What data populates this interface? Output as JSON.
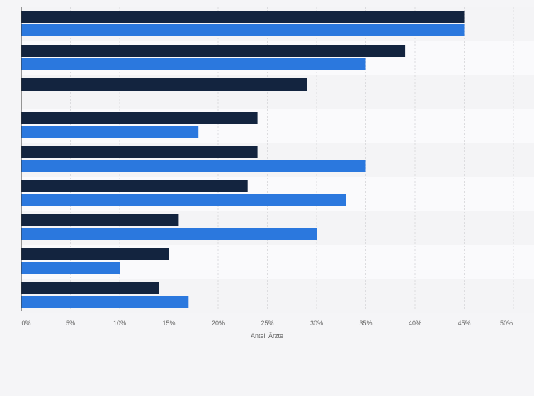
{
  "chart_data": {
    "type": "bar",
    "orientation": "horizontal",
    "categories": [
      "",
      "",
      "",
      "",
      "",
      "",
      "",
      "",
      ""
    ],
    "series": [
      {
        "color": "#13243f",
        "values": [
          45,
          39,
          29,
          24,
          24,
          23,
          16,
          15,
          14
        ]
      },
      {
        "color": "#2b78de",
        "values": [
          45,
          35,
          null,
          18,
          35,
          33,
          30,
          10,
          17
        ]
      }
    ],
    "x_ticks": [
      "0%",
      "5%",
      "10%",
      "15%",
      "20%",
      "25%",
      "30%",
      "35%",
      "40%",
      "45%",
      "50%"
    ],
    "xlabel": "Anteil Ärzte",
    "ylabel": "",
    "xlim": [
      0,
      50
    ],
    "grid": "vertical",
    "legend": "none",
    "row_band_colors": [
      "#f4f4f6",
      "#fafafc"
    ]
  }
}
